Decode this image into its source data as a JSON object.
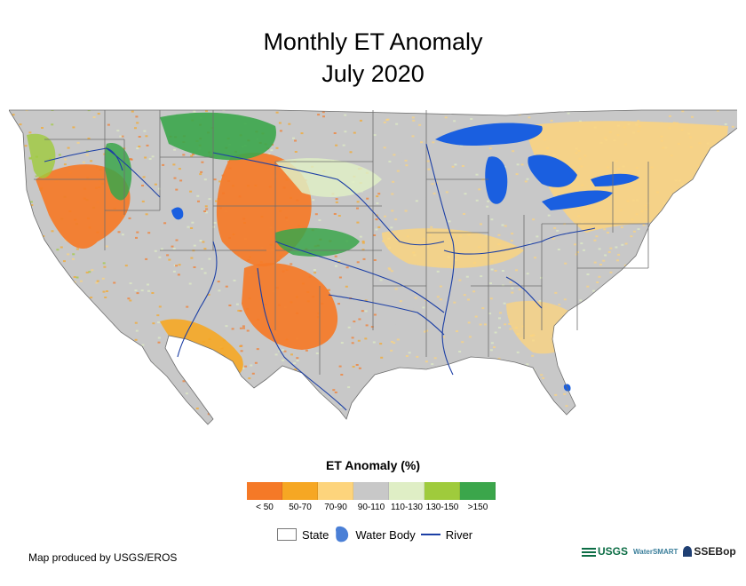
{
  "title": "Monthly ET Anomaly",
  "subtitle": "July 2020",
  "legend": {
    "title": "ET Anomaly (%)",
    "classes": [
      {
        "label": "< 50",
        "color": "#f57927"
      },
      {
        "label": "50-70",
        "color": "#f6a723"
      },
      {
        "label": "70-90",
        "color": "#fdd47c"
      },
      {
        "label": "90-110",
        "color": "#c8c8c8"
      },
      {
        "label": "110-130",
        "color": "#dfeec5"
      },
      {
        "label": "130-150",
        "color": "#9fcb3c"
      },
      {
        "label": ">150",
        "color": "#3ba64b"
      }
    ],
    "keys": {
      "state": "State",
      "water": "Water Body",
      "river": "River"
    }
  },
  "credit": "Map produced by USGS/EROS",
  "logos": {
    "usgs": "USGS",
    "smart": "WaterSMART",
    "ssebop": "SSEBop"
  },
  "colors": {
    "water": "#1a5fe0",
    "river": "#1c3fa5",
    "state_border": "#6e6e6e"
  }
}
